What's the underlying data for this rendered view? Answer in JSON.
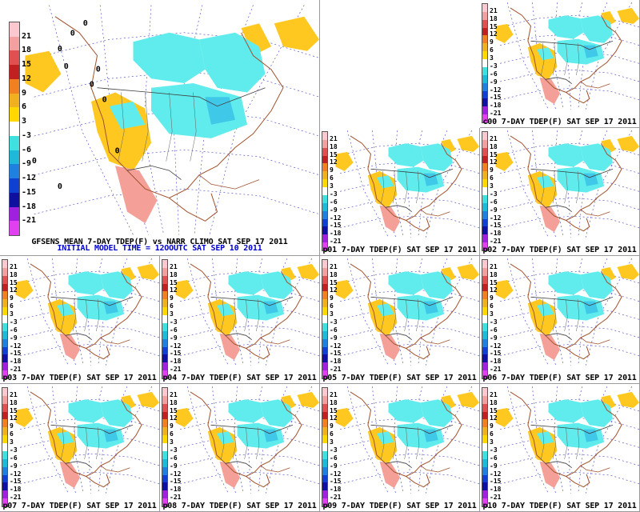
{
  "main": {
    "title": "GFSENS MEAN 7-DAY TDEP(F) vs NARR CLIMO SAT SEP 17 2011",
    "subtitle": "INITIAL MODEL TIME = 12OOUTC SAT SEP 10 2011",
    "contour_labels": [
      "0",
      "0",
      "0",
      "0",
      "0",
      "0",
      "0",
      "0",
      "0",
      "0"
    ]
  },
  "legend": {
    "labels": [
      "21",
      "18",
      "15",
      "12",
      "9",
      "6",
      "3",
      "-3",
      "-6",
      "-9",
      "-12",
      "-15",
      "-18",
      "-21"
    ],
    "colors": [
      "#fbc8d0",
      "#f4a0a0",
      "#e05050",
      "#c02020",
      "#f08020",
      "#f0b020",
      "#ffd800",
      "#ffffff",
      "#40e0e0",
      "#20b8d8",
      "#2080e0",
      "#1040d0",
      "#1010a0",
      "#a020e0",
      "#e040f0"
    ]
  },
  "colors": {
    "cool_light": "#60ecec",
    "cool_mid": "#40c8e8",
    "warm": "#ffc820",
    "warm_pink": "#f4a098",
    "coast": "#a0522d",
    "grid": "#4040c0"
  },
  "panels": [
    {
      "id": "c00",
      "caption": "c00  7-DAY  TDEP(F)  SAT  SEP  17  2011"
    },
    {
      "id": "p01",
      "caption": "p01  7-DAY  TDEP(F)  SAT  SEP  17  2011"
    },
    {
      "id": "p02",
      "caption": "p02  7-DAY  TDEP(F)  SAT  SEP  17  2011"
    },
    {
      "id": "p03",
      "caption": "p03  7-DAY  TDEP(F)  SAT  SEP  17  2011"
    },
    {
      "id": "p04",
      "caption": "p04  7-DAY  TDEP(F)  SAT  SEP  17  2011"
    },
    {
      "id": "p05",
      "caption": "p05  7-DAY  TDEP(F)  SAT  SEP  17  2011"
    },
    {
      "id": "p06",
      "caption": "p06  7-DAY  TDEP(F)  SAT  SEP  17  2011"
    },
    {
      "id": "p07",
      "caption": "p07  7-DAY  TDEP(F)  SAT  SEP  17  2011"
    },
    {
      "id": "p08",
      "caption": "p08  7-DAY  TDEP(F)  SAT  SEP  17  2011"
    },
    {
      "id": "p09",
      "caption": "p09  7-DAY  TDEP(F)  SAT  SEP  17  2011"
    },
    {
      "id": "p10",
      "caption": "p10  7-DAY  TDEP(F)  SAT  SEP  17  2011"
    }
  ]
}
